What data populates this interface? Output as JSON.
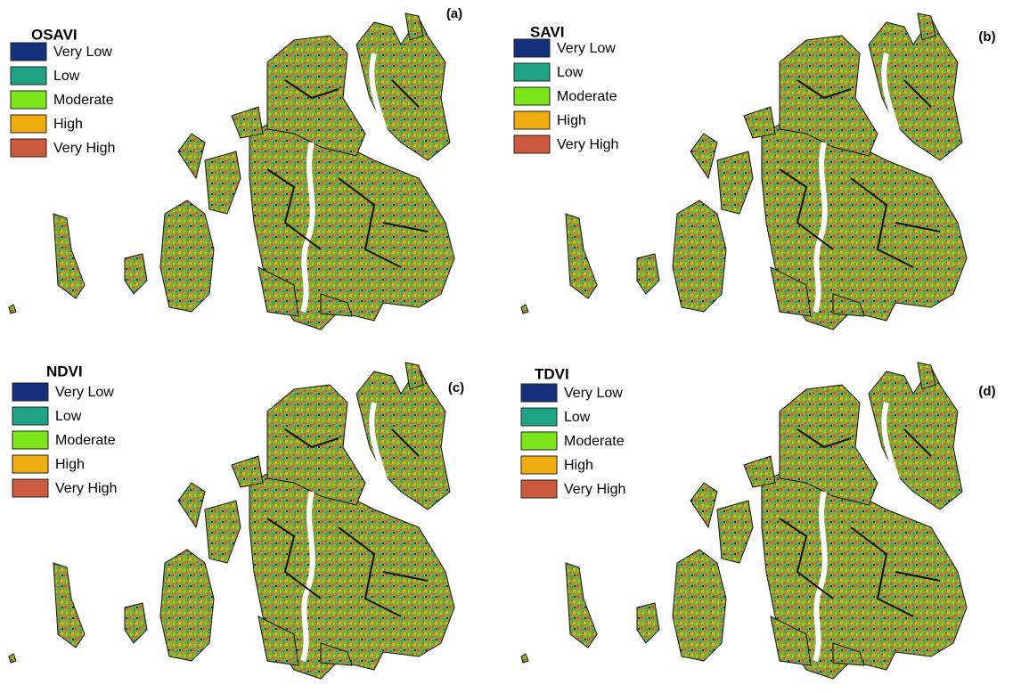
{
  "panels": [
    {
      "label": "(a)",
      "title": "OSAVI",
      "legend": [
        {
          "name": "Very Low",
          "color": "#14307a"
        },
        {
          "name": "Low",
          "color": "#1fa385"
        },
        {
          "name": "Moderate",
          "color": "#7de61a"
        },
        {
          "name": "High",
          "color": "#f0ad12"
        },
        {
          "name": "Very High",
          "color": "#cc5a3e"
        }
      ]
    },
    {
      "label": "(b)",
      "title": "SAVI",
      "legend": [
        {
          "name": "Very Low",
          "color": "#14307a"
        },
        {
          "name": "Low",
          "color": "#1fa385"
        },
        {
          "name": "Moderate",
          "color": "#7de61a"
        },
        {
          "name": "High",
          "color": "#f0ad12"
        },
        {
          "name": "Very High",
          "color": "#cc5a3e"
        }
      ]
    },
    {
      "label": "(c)",
      "title": "NDVI",
      "legend": [
        {
          "name": "Very Low",
          "color": "#14307a"
        },
        {
          "name": "Low",
          "color": "#1fa385"
        },
        {
          "name": "Moderate",
          "color": "#7de61a"
        },
        {
          "name": "High",
          "color": "#f0ad12"
        },
        {
          "name": "Very High",
          "color": "#cc5a3e"
        }
      ]
    },
    {
      "label": "(d)",
      "title": "TDVI",
      "legend": [
        {
          "name": "Very Low",
          "color": "#14307a"
        },
        {
          "name": "Low",
          "color": "#1fa385"
        },
        {
          "name": "Moderate",
          "color": "#7de61a"
        },
        {
          "name": "High",
          "color": "#f0ad12"
        },
        {
          "name": "Very High",
          "color": "#cc5a3e"
        }
      ]
    }
  ]
}
